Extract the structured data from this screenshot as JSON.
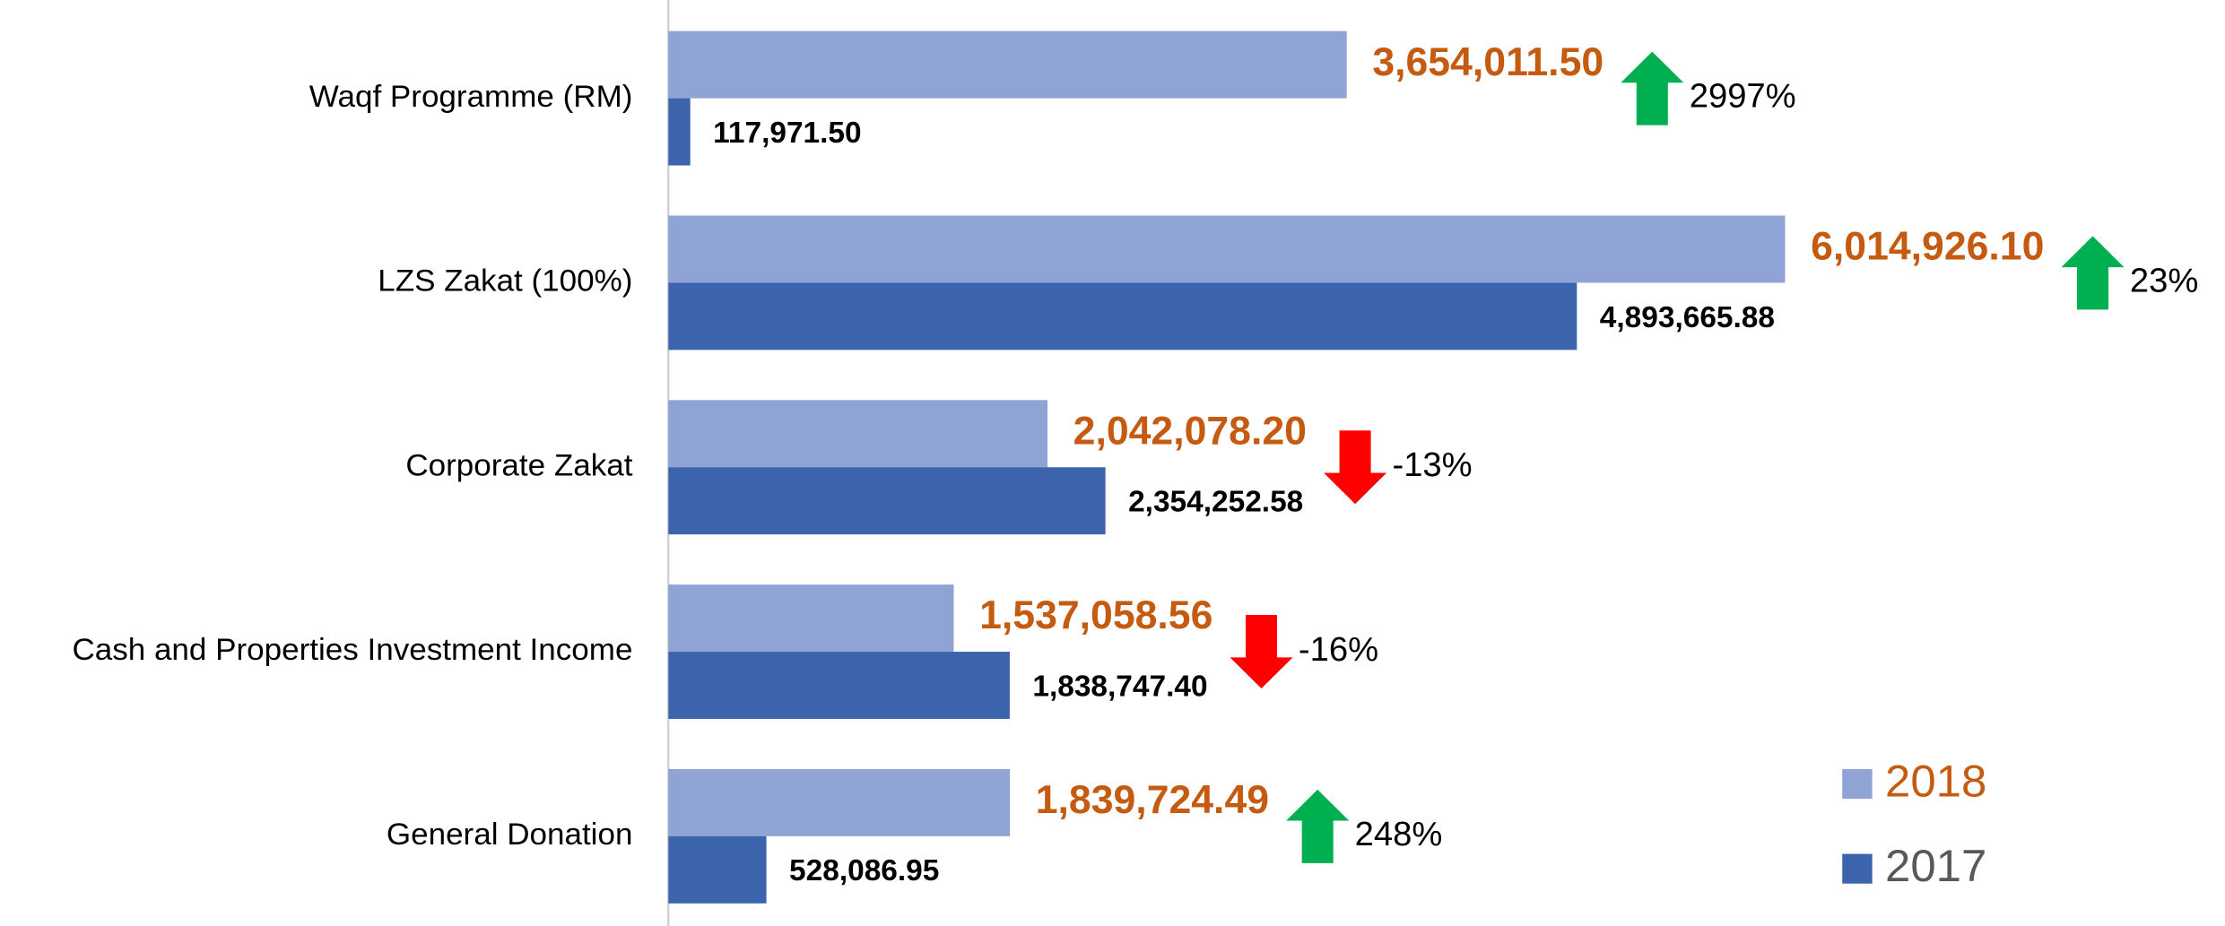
{
  "chart_data": {
    "type": "hbar",
    "categories": [
      "Waqf Programme (RM)",
      "LZS Zakat (100%)",
      "Corporate Zakat",
      "Cash and Properties Investment Income",
      "General Donation"
    ],
    "series": [
      {
        "name": "2018",
        "color": "#8fa3d5",
        "label_color": "#c55a11",
        "values": [
          3654011.5,
          6014926.1,
          2042078.2,
          1537058.56,
          1839724.49
        ],
        "value_labels": [
          "3,654,011.50",
          "6,014,926.10",
          "2,042,078.20",
          "1,537,058.56",
          "1,839,724.49"
        ]
      },
      {
        "name": "2017",
        "color": "#3c64ad",
        "label_color": "#000000",
        "values": [
          117971.5,
          4893665.88,
          2354252.58,
          1838747.4,
          528086.95
        ],
        "value_labels": [
          "117,971.50",
          "4,893,665.88",
          "2,354,252.58",
          "1,838,747.40",
          "528,086.95"
        ]
      }
    ],
    "changes": [
      {
        "label": "2997%",
        "direction": "up"
      },
      {
        "label": "23%",
        "direction": "up"
      },
      {
        "label": "-13%",
        "direction": "down"
      },
      {
        "label": "-16%",
        "direction": "down"
      },
      {
        "label": "248%",
        "direction": "up"
      }
    ],
    "arrow_colors": {
      "up": "#00b050",
      "down": "#ff0000"
    },
    "xlim": [
      0,
      7000000
    ],
    "legend": "lower right",
    "legend_text_colors": [
      "#c55a11",
      "#595959"
    ]
  }
}
